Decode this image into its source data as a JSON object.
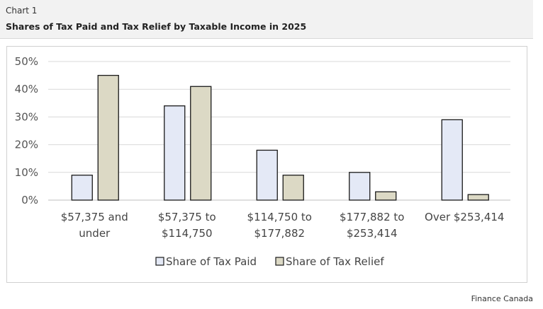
{
  "header": {
    "label": "Chart 1",
    "title": "Shares of Tax Paid and Tax Relief by Taxable Income in 2025"
  },
  "source": "Finance Canada",
  "colors": {
    "paid": "#e4e9f6",
    "relief": "#dcd9c5",
    "outline": "#1a1a1a",
    "grid": "#d9d9d9"
  },
  "chart_data": {
    "type": "bar",
    "title": "Shares of Tax Paid and Tax Relief by Taxable Income in 2025",
    "xlabel": "",
    "ylabel": "",
    "ylim": [
      0,
      50
    ],
    "yticks": [
      "0%",
      "10%",
      "20%",
      "30%",
      "40%",
      "50%"
    ],
    "categories": [
      [
        "$57,375 and",
        "under"
      ],
      [
        "$57,375 to",
        "$114,750"
      ],
      [
        "$114,750 to",
        "$177,882"
      ],
      [
        "$177,882 to",
        "$253,414"
      ],
      [
        "Over $253,414"
      ]
    ],
    "series": [
      {
        "name": "Share of Tax Paid",
        "values": [
          9,
          34,
          18,
          10,
          29
        ]
      },
      {
        "name": "Share of Tax Relief",
        "values": [
          45,
          41,
          9,
          3,
          2
        ]
      }
    ],
    "legend": "bottom"
  }
}
